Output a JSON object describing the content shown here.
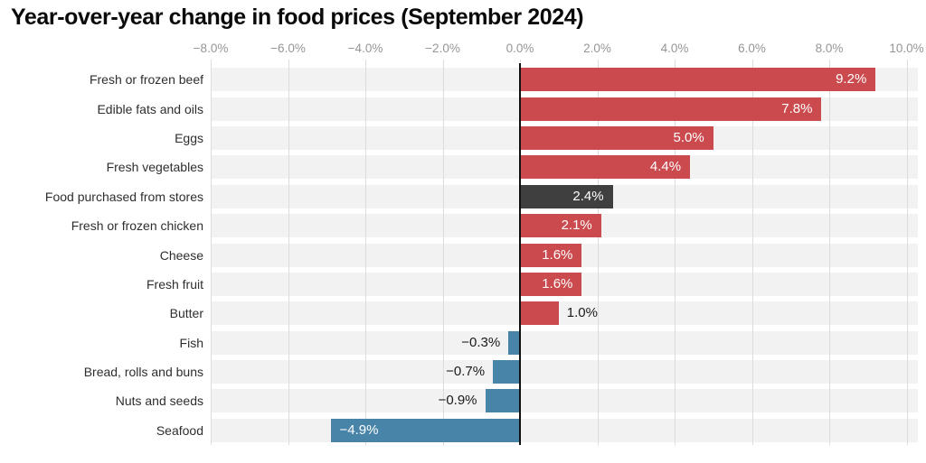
{
  "title": "Year-over-year change in food prices (September 2024)",
  "colors": {
    "increase": "#cb4a4e",
    "decrease": "#4884a8",
    "benchmark": "#3f3f3f",
    "row_band": "#f2f2f2",
    "gridline": "#dcdcdc",
    "axis_text": "#969696",
    "category_text": "#2e2e2e",
    "zero_line": "#111111",
    "value_inside": "#ffffff",
    "value_outside": "#1a1a1a"
  },
  "chart_data": {
    "type": "bar",
    "orientation": "horizontal",
    "title": "Year-over-year change in food prices (September 2024)",
    "xlabel": "",
    "ylabel": "",
    "xlim": [
      -8.0,
      10.3
    ],
    "grid": true,
    "axis_ticks": [
      {
        "value": -8,
        "label": "−8.0%"
      },
      {
        "value": -6,
        "label": "−6.0%"
      },
      {
        "value": -4,
        "label": "−4.0%"
      },
      {
        "value": -2,
        "label": "−2.0%"
      },
      {
        "value": 0,
        "label": "0.0%"
      },
      {
        "value": 2,
        "label": "2.0%"
      },
      {
        "value": 4,
        "label": "4.0%"
      },
      {
        "value": 6,
        "label": "6.0%"
      },
      {
        "value": 8,
        "label": "8.0%"
      },
      {
        "value": 10,
        "label": "10.0%"
      }
    ],
    "categories": [
      "Fresh or frozen beef",
      "Edible fats and oils",
      "Eggs",
      "Fresh vegetables",
      "Food purchased from stores",
      "Fresh or frozen chicken",
      "Cheese",
      "Fresh fruit",
      "Butter",
      "Fish",
      "Bread, rolls and buns",
      "Nuts and seeds",
      "Seafood"
    ],
    "values": [
      9.2,
      7.8,
      5.0,
      4.4,
      2.4,
      2.1,
      1.6,
      1.6,
      1.0,
      -0.3,
      -0.7,
      -0.9,
      -4.9
    ],
    "bars": [
      {
        "category": "Fresh or frozen beef",
        "value": 9.2,
        "display": "9.2%",
        "role": "increase"
      },
      {
        "category": "Edible fats and oils",
        "value": 7.8,
        "display": "7.8%",
        "role": "increase"
      },
      {
        "category": "Eggs",
        "value": 5.0,
        "display": "5.0%",
        "role": "increase"
      },
      {
        "category": "Fresh vegetables",
        "value": 4.4,
        "display": "4.4%",
        "role": "increase"
      },
      {
        "category": "Food purchased from stores",
        "value": 2.4,
        "display": "2.4%",
        "role": "benchmark"
      },
      {
        "category": "Fresh or frozen chicken",
        "value": 2.1,
        "display": "2.1%",
        "role": "increase"
      },
      {
        "category": "Cheese",
        "value": 1.6,
        "display": "1.6%",
        "role": "increase"
      },
      {
        "category": "Fresh fruit",
        "value": 1.6,
        "display": "1.6%",
        "role": "increase"
      },
      {
        "category": "Butter",
        "value": 1.0,
        "display": "1.0%",
        "role": "increase"
      },
      {
        "category": "Fish",
        "value": -0.3,
        "display": "−0.3%",
        "role": "decrease"
      },
      {
        "category": "Bread, rolls and buns",
        "value": -0.7,
        "display": "−0.7%",
        "role": "decrease"
      },
      {
        "category": "Nuts and seeds",
        "value": -0.9,
        "display": "−0.9%",
        "role": "decrease"
      },
      {
        "category": "Seafood",
        "value": -4.9,
        "display": "−4.9%",
        "role": "decrease"
      }
    ]
  }
}
